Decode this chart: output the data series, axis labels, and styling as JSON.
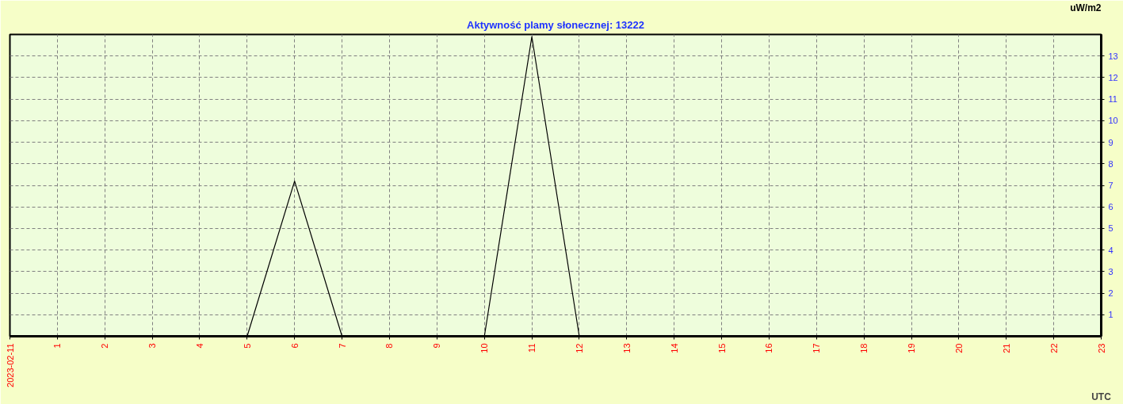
{
  "chart_data": {
    "type": "line",
    "title": "Aktywność plamy słonecznej: 13222",
    "xlabel": "UTC",
    "ylabel": "uW/m2",
    "x": [
      0,
      1,
      2,
      3,
      4,
      5,
      6,
      7,
      8,
      9,
      10,
      11,
      12,
      13,
      14,
      15,
      16,
      17,
      18,
      19,
      20,
      21,
      22,
      23
    ],
    "series": [
      {
        "color": "#000000",
        "values": [
          0,
          0,
          0,
          0,
          0,
          0,
          7.2,
          0,
          0,
          0,
          0,
          13.9,
          0,
          0,
          0,
          0,
          0,
          0,
          0,
          0,
          0,
          0,
          0,
          0
        ]
      }
    ],
    "xlim": [
      0,
      23
    ],
    "ylim": [
      0,
      14
    ],
    "xticks": [
      {
        "value": 0,
        "label": "2023-02-11"
      },
      1,
      2,
      3,
      4,
      5,
      6,
      7,
      8,
      9,
      10,
      11,
      12,
      13,
      14,
      15,
      16,
      17,
      18,
      19,
      20,
      21,
      22,
      23
    ],
    "yticks": [
      1,
      2,
      3,
      4,
      5,
      6,
      7,
      8,
      9,
      10,
      11,
      12,
      13
    ],
    "grid": true,
    "marker": "none",
    "line_style": "solid"
  }
}
